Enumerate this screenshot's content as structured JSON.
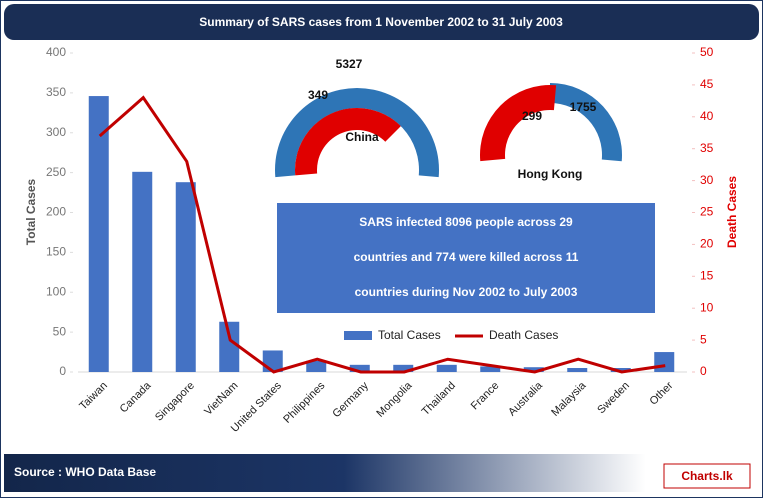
{
  "chart_data": {
    "type": "bar",
    "title": "Summary of SARS cases from 1 November 2002 to 31 July 2003",
    "categories": [
      "Taiwan",
      "Canada",
      "Singapore",
      "VietNam",
      "United States",
      "Philippines",
      "Germany",
      "Mongolia",
      "Thailand",
      "France",
      "Australia",
      "Malaysia",
      "Sweden",
      "Other"
    ],
    "series": [
      {
        "name": "Total Cases",
        "color": "#4472c4",
        "type": "bar",
        "values": [
          346,
          251,
          238,
          63,
          27,
          14,
          9,
          9,
          9,
          7,
          6,
          5,
          5,
          25
        ]
      },
      {
        "name": "Death Cases",
        "color": "#c00000",
        "type": "line",
        "axis": "y2",
        "values": [
          37,
          43,
          33,
          5,
          0,
          2,
          0,
          0,
          2,
          1,
          0,
          2,
          0,
          1
        ]
      }
    ],
    "ylabel": "Total Cases",
    "y2label": "Death Cases",
    "ylim": [
      0,
      400
    ],
    "yticks": [
      0,
      50,
      100,
      150,
      200,
      250,
      300,
      350,
      400
    ],
    "y2lim": [
      0,
      50
    ],
    "y2ticks": [
      0,
      5,
      10,
      15,
      20,
      25,
      30,
      35,
      40,
      45,
      50
    ],
    "grid": false,
    "legend": "bottom",
    "text_box": [
      "SARS infected 8096 people across 29",
      "countries and 774 were killed across 11",
      "countries during Nov 2002 to July 2003"
    ],
    "gauges": [
      {
        "label": "China",
        "total": 5327,
        "deaths": 349
      },
      {
        "label": "Hong Kong",
        "total": 1755,
        "deaths": 299
      }
    ],
    "source": "Source : WHO Data Base",
    "logo": "Charts.lk"
  }
}
